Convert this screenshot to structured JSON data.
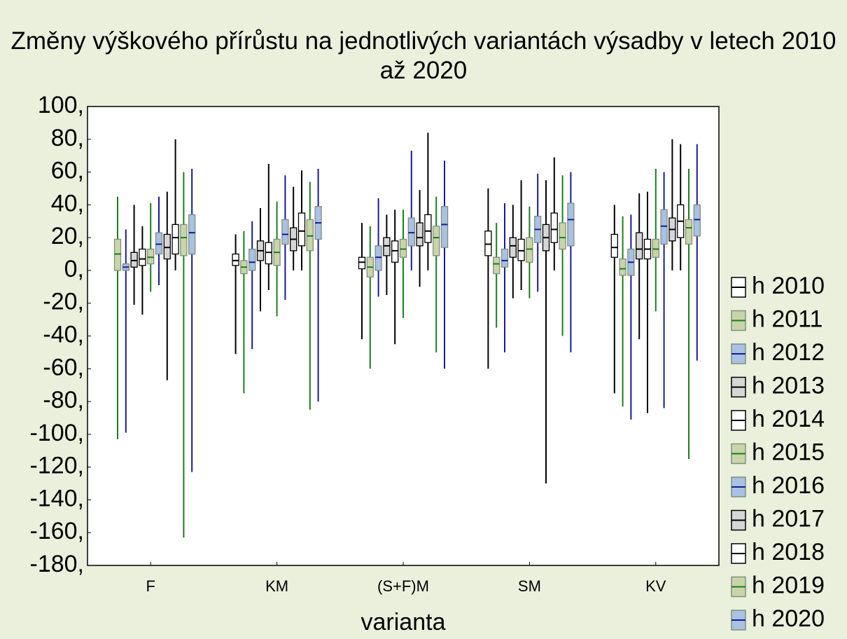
{
  "chart_data": {
    "type": "boxplot",
    "title": "Změny výškového přírůstu na jednotlivých variantách výsadby v letech 2010 až 2020",
    "xlabel": "varianta",
    "categories": [
      "F",
      "KM",
      "(S+F)M",
      "SM",
      "KV"
    ],
    "ylim": [
      -180,
      100
    ],
    "yticks": [
      {
        "value": 100,
        "label": "100,"
      },
      {
        "value": 80,
        "label": "80,"
      },
      {
        "value": 60,
        "label": "60,"
      },
      {
        "value": 40,
        "label": "40,"
      },
      {
        "value": 20,
        "label": "20,"
      },
      {
        "value": 0,
        "label": "0,"
      },
      {
        "value": -20,
        "label": "-20,"
      },
      {
        "value": -40,
        "label": "-40,"
      },
      {
        "value": -60,
        "label": "-60,"
      },
      {
        "value": -80,
        "label": "-80,"
      },
      {
        "value": -100,
        "label": "-100,"
      },
      {
        "value": -120,
        "label": "-120,"
      },
      {
        "value": -140,
        "label": "-140,"
      },
      {
        "value": -160,
        "label": "-160,"
      },
      {
        "value": -180,
        "label": "-180,"
      }
    ],
    "series": [
      {
        "name": "h 2010",
        "color": "#000000",
        "fill": "#ffffff",
        "min": [
          null,
          -51,
          -42,
          -60,
          -75
        ],
        "q1": [
          null,
          3,
          1,
          9,
          8
        ],
        "median": [
          null,
          6,
          5,
          16,
          14
        ],
        "q3": [
          null,
          10,
          8,
          24,
          22
        ],
        "max": [
          null,
          22,
          29,
          50,
          40
        ]
      },
      {
        "name": "h 2011",
        "color": "#1a7f1a",
        "fill": "#c9d5a9",
        "min": [
          -103,
          -75,
          -60,
          -35,
          -83
        ],
        "q1": [
          0,
          -2,
          -4,
          -2,
          -3
        ],
        "median": [
          10,
          2,
          2,
          4,
          1
        ],
        "q3": [
          19,
          6,
          8,
          8,
          7
        ],
        "max": [
          45,
          24,
          27,
          29,
          33
        ]
      },
      {
        "name": "h 2012",
        "color": "#1a1a96",
        "fill": "#a9c1e2",
        "min": [
          -99,
          -48,
          -16,
          -50,
          -91
        ],
        "q1": [
          0,
          0,
          0,
          2,
          -3
        ],
        "median": [
          2,
          5,
          8,
          6,
          5
        ],
        "q3": [
          4,
          13,
          15,
          13,
          13
        ],
        "max": [
          25,
          30,
          44,
          41,
          34
        ]
      },
      {
        "name": "h 2013",
        "color": "#000000",
        "fill": "#d6d6d6",
        "min": [
          -21,
          -25,
          -15,
          -17,
          -42
        ],
        "q1": [
          2,
          6,
          9,
          8,
          7
        ],
        "median": [
          6,
          12,
          15,
          15,
          13
        ],
        "q3": [
          11,
          18,
          20,
          20,
          23
        ],
        "max": [
          40,
          38,
          34,
          40,
          47
        ]
      },
      {
        "name": "h 2014",
        "color": "#000000",
        "fill": "#ffffff",
        "min": [
          -27,
          -12,
          -45,
          -12,
          -87
        ],
        "q1": [
          3,
          4,
          5,
          6,
          7
        ],
        "median": [
          7,
          11,
          12,
          12,
          13
        ],
        "q3": [
          13,
          17,
          18,
          19,
          19
        ],
        "max": [
          27,
          65,
          37,
          55,
          48
        ]
      },
      {
        "name": "h 2015",
        "color": "#1a7f1a",
        "fill": "#c9d5a9",
        "min": [
          -13,
          -28,
          -29,
          -17,
          -25
        ],
        "q1": [
          4,
          3,
          8,
          5,
          8
        ],
        "median": [
          8,
          11,
          13,
          13,
          13
        ],
        "q3": [
          13,
          19,
          19,
          20,
          19
        ],
        "max": [
          41,
          42,
          37,
          39,
          62
        ]
      },
      {
        "name": "h 2016",
        "color": "#1a1a96",
        "fill": "#a9c1e2",
        "min": [
          -9,
          -18,
          0,
          -13,
          -84
        ],
        "q1": [
          10,
          16,
          15,
          17,
          16
        ],
        "median": [
          16,
          22,
          23,
          25,
          27
        ],
        "q3": [
          23,
          31,
          32,
          33,
          37
        ],
        "max": [
          45,
          58,
          73,
          59,
          60
        ]
      },
      {
        "name": "h 2017",
        "color": "#000000",
        "fill": "#d6d6d6",
        "min": [
          -67,
          0,
          -10,
          -130,
          0
        ],
        "q1": [
          7,
          12,
          15,
          12,
          18
        ],
        "median": [
          14,
          19,
          20,
          20,
          25
        ],
        "q3": [
          22,
          26,
          29,
          28,
          32
        ],
        "max": [
          48,
          51,
          49,
          55,
          80
        ]
      },
      {
        "name": "h 2018",
        "color": "#000000",
        "fill": "#ffffff",
        "min": [
          0,
          0,
          0,
          0,
          0
        ],
        "q1": [
          10,
          15,
          17,
          17,
          20
        ],
        "median": [
          20,
          24,
          24,
          25,
          30
        ],
        "q3": [
          28,
          35,
          34,
          35,
          40
        ],
        "max": [
          80,
          61,
          84,
          69,
          77
        ]
      },
      {
        "name": "h 2019",
        "color": "#1a7f1a",
        "fill": "#c9d5a9",
        "min": [
          -163,
          -85,
          -50,
          -40,
          -115
        ],
        "q1": [
          9,
          12,
          9,
          13,
          16
        ],
        "median": [
          20,
          21,
          20,
          20,
          26
        ],
        "q3": [
          28,
          31,
          27,
          29,
          31
        ],
        "max": [
          60,
          54,
          45,
          58,
          62
        ]
      },
      {
        "name": "h 2020",
        "color": "#1a1a96",
        "fill": "#a9c1e2",
        "min": [
          -123,
          -80,
          -60,
          -50,
          -55
        ],
        "q1": [
          10,
          19,
          14,
          15,
          21
        ],
        "median": [
          23,
          29,
          28,
          31,
          31
        ],
        "q3": [
          34,
          39,
          39,
          41,
          40
        ],
        "max": [
          62,
          62,
          67,
          60,
          77
        ]
      }
    ]
  }
}
